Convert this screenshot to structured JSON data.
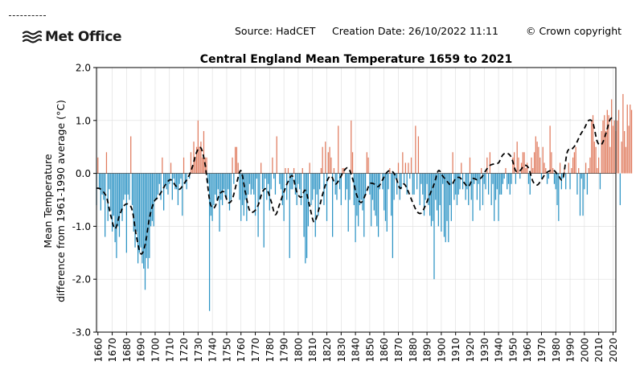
{
  "header": {
    "logo_text": "Met Office",
    "source": "Source: HadCET",
    "creation": "Creation Date: 26/10/2022 11:11",
    "copyright": "© Crown copyright"
  },
  "colors": {
    "positive": "#e07b5e",
    "negative": "#2b93c4",
    "smooth": "#000000",
    "grid": "#dddddd"
  },
  "chart_data": {
    "type": "bar",
    "title": "Central England Mean Temperature 1659 to 2021",
    "ylabel_line1": "Mean Temperature",
    "ylabel_line2": "difference from 1961-1990 average (°C)",
    "xlabel": "",
    "xlim": [
      1659,
      2022
    ],
    "ylim": [
      -3.0,
      2.0
    ],
    "yticks": [
      2.0,
      1.0,
      0.0,
      -1.0,
      -2.0,
      -3.0
    ],
    "ytick_labels": [
      "2.0",
      "1.0",
      "0.0",
      "-1.0",
      "-2.0",
      "-3.0"
    ],
    "xticks": [
      1660,
      1670,
      1680,
      1690,
      1700,
      1710,
      1720,
      1730,
      1740,
      1750,
      1760,
      1770,
      1780,
      1790,
      1800,
      1810,
      1820,
      1830,
      1840,
      1850,
      1860,
      1870,
      1880,
      1890,
      1900,
      1910,
      1920,
      1930,
      1940,
      1950,
      1960,
      1970,
      1980,
      1990,
      2000,
      2010,
      2020
    ],
    "xtick_labels": [
      "1660",
      "1670",
      "1680",
      "1690",
      "1700",
      "1710",
      "1720",
      "1730",
      "1740",
      "1750",
      "1760",
      "1770",
      "1780",
      "1790",
      "1800",
      "1810",
      "1820",
      "1830",
      "1840",
      "1850",
      "1860",
      "1870",
      "1880",
      "1890",
      "1900",
      "1910",
      "1920",
      "1930",
      "1940",
      "1950",
      "1960",
      "1970",
      "1980",
      "1990",
      "2000",
      "2010",
      "2020"
    ],
    "grid": true,
    "start_year": 1659,
    "series": [
      {
        "type": "bar",
        "values": [
          -0.6,
          0.3,
          -0.3,
          -0.7,
          -0.4,
          -0.5,
          -1.2,
          0.4,
          -0.9,
          -0.3,
          -0.7,
          -1.1,
          -0.8,
          -1.3,
          -1.6,
          -1.0,
          -1.2,
          -0.7,
          -0.9,
          -0.5,
          -0.4,
          -1.5,
          -0.4,
          -0.5,
          0.7,
          -0.6,
          -1.1,
          -1.4,
          -1.1,
          -1.7,
          -1.5,
          -1.4,
          -1.7,
          -1.8,
          -2.2,
          -1.6,
          -1.8,
          -1.6,
          -1.0,
          -0.9,
          -1.0,
          -0.5,
          -0.5,
          -0.4,
          -0.2,
          -0.5,
          0.3,
          -0.7,
          -0.2,
          -0.3,
          -0.4,
          -0.2,
          0.2,
          -0.5,
          -0.1,
          -0.3,
          -0.3,
          -0.6,
          -0.2,
          -0.1,
          -0.8,
          0.3,
          -0.2,
          -0.3,
          0.0,
          -0.1,
          0.4,
          0.1,
          0.6,
          0.3,
          0.5,
          1.0,
          0.5,
          0.6,
          0.3,
          0.8,
          0.3,
          0.3,
          -0.2,
          -2.6,
          -0.8,
          -0.9,
          -0.6,
          -0.4,
          -0.5,
          -0.3,
          -1.1,
          -0.5,
          -0.6,
          -0.3,
          -0.4,
          -0.5,
          -0.3,
          -0.7,
          -0.5,
          0.3,
          -0.2,
          0.5,
          0.5,
          0.2,
          -0.5,
          -0.9,
          -0.6,
          -0.8,
          -0.5,
          -0.9,
          -0.4,
          -0.2,
          -0.4,
          -0.3,
          -0.4,
          -0.8,
          -0.1,
          -1.2,
          -0.5,
          0.2,
          -0.3,
          -1.4,
          -0.1,
          -0.5,
          -0.2,
          -0.7,
          -0.3,
          0.3,
          -0.1,
          -0.4,
          0.7,
          0.0,
          -0.2,
          -0.3,
          -0.6,
          -0.9,
          0.1,
          -0.5,
          0.1,
          -1.6,
          -0.3,
          -0.3,
          0.1,
          -0.4,
          -0.6,
          -0.2,
          -0.3,
          -0.6,
          0.1,
          -1.2,
          -1.7,
          -1.6,
          -1.0,
          0.2,
          -0.6,
          -0.5,
          -0.3,
          -1.2,
          -0.4,
          -0.8,
          -0.3,
          0.1,
          0.5,
          -0.6,
          0.6,
          -0.9,
          0.4,
          0.5,
          0.3,
          -1.2,
          0.1,
          -0.4,
          -0.5,
          0.9,
          -0.3,
          -0.6,
          0.1,
          0.1,
          -0.5,
          -0.3,
          -1.1,
          -0.5,
          1.0,
          0.4,
          -0.6,
          -1.3,
          -0.8,
          -1.0,
          -0.6,
          -0.5,
          -0.7,
          -1.2,
          -0.4,
          0.4,
          0.3,
          -0.4,
          -1.0,
          -0.5,
          -0.7,
          -0.8,
          -1.0,
          -1.2,
          -0.3,
          0.0,
          -0.3,
          -0.7,
          -0.9,
          -1.1,
          -0.3,
          0.1,
          -0.8,
          -1.6,
          -0.5,
          -0.1,
          -0.4,
          0.2,
          -0.5,
          -0.3,
          0.4,
          -0.2,
          0.2,
          -0.4,
          0.2,
          -0.1,
          0.3,
          -0.4,
          -0.4,
          0.9,
          -0.3,
          0.7,
          -0.6,
          -0.2,
          -0.4,
          -0.8,
          -0.5,
          -0.2,
          -0.6,
          -0.8,
          -1.0,
          -0.9,
          -2.0,
          -0.5,
          -0.7,
          -1.0,
          -0.6,
          -1.1,
          -0.2,
          -1.2,
          -1.3,
          -0.9,
          -1.3,
          -0.6,
          -0.9,
          0.4,
          -0.5,
          -0.4,
          -0.6,
          -0.4,
          -0.3,
          0.2,
          -0.3,
          0.0,
          -0.5,
          -0.3,
          -0.6,
          0.3,
          -0.5,
          -0.9,
          -0.2,
          -0.1,
          -0.5,
          -0.2,
          -0.7,
          0.1,
          -0.6,
          -0.2,
          -0.3,
          0.3,
          -0.4,
          0.4,
          -0.6,
          -0.2,
          -0.9,
          -0.5,
          -0.3,
          -0.9,
          -0.4,
          -0.4,
          -0.2,
          -0.1,
          0.1,
          -0.3,
          -0.2,
          -0.4,
          -0.2,
          0.3,
          0.4,
          -0.2,
          0.6,
          0.3,
          -0.1,
          0.2,
          0.4,
          0.4,
          0.1,
          0.2,
          -0.2,
          -0.4,
          0.3,
          0.1,
          0.4,
          0.7,
          0.6,
          0.5,
          0.3,
          -0.1,
          0.5,
          0.2,
          0.1,
          -0.2,
          -0.1,
          0.9,
          0.4,
          0.1,
          -0.2,
          -0.3,
          -0.6,
          -0.9,
          0.2,
          -0.3,
          -0.1,
          0.1,
          -0.3,
          0.0,
          0.2,
          -0.3,
          0.1,
          0.3,
          0.4,
          0.5,
          -0.4,
          0.1,
          -0.8,
          -0.1,
          -0.8,
          -0.3,
          0.2,
          -0.4,
          0.1,
          0.3,
          1.0,
          1.1,
          0.6,
          0.5,
          0.1,
          0.3,
          -0.3,
          0.8,
          1.0,
          1.1,
          0.8,
          1.2,
          1.1,
          0.5,
          1.4,
          0.9,
          1.0,
          0.8,
          1.0,
          1.2,
          -0.6,
          0.6,
          1.5,
          0.8,
          0.5,
          1.3,
          0.9,
          1.3,
          1.2
        ]
      },
      {
        "type": "line",
        "x": [
          1659,
          1662,
          1666,
          1669,
          1672,
          1675,
          1678,
          1681,
          1684,
          1687,
          1690,
          1693,
          1696,
          1699,
          1702,
          1705,
          1708,
          1711,
          1714,
          1717,
          1720,
          1723,
          1726,
          1729,
          1732,
          1735,
          1738,
          1740,
          1742,
          1745,
          1748,
          1751,
          1754,
          1757,
          1760,
          1763,
          1766,
          1769,
          1772,
          1775,
          1778,
          1781,
          1784,
          1787,
          1790,
          1793,
          1796,
          1799,
          1802,
          1805,
          1808,
          1811,
          1814,
          1817,
          1820,
          1823,
          1826,
          1829,
          1832,
          1835,
          1838,
          1841,
          1844,
          1847,
          1850,
          1853,
          1856,
          1859,
          1862,
          1865,
          1868,
          1871,
          1874,
          1877,
          1880,
          1883,
          1886,
          1889,
          1892,
          1895,
          1898,
          1901,
          1904,
          1907,
          1910,
          1913,
          1916,
          1919,
          1922,
          1925,
          1928,
          1931,
          1934,
          1937,
          1940,
          1943,
          1946,
          1949,
          1952,
          1955,
          1958,
          1961,
          1964,
          1967,
          1970,
          1973,
          1976,
          1979,
          1982,
          1985,
          1988,
          1991,
          1994,
          1997,
          2000,
          2003,
          2006,
          2009,
          2012,
          2015,
          2018,
          2021
        ],
        "y": [
          -0.28,
          -0.3,
          -0.45,
          -0.8,
          -1.05,
          -0.8,
          -0.62,
          -0.58,
          -0.7,
          -1.2,
          -1.52,
          -1.35,
          -0.85,
          -0.55,
          -0.45,
          -0.32,
          -0.18,
          -0.12,
          -0.22,
          -0.3,
          -0.2,
          -0.08,
          0.12,
          0.4,
          0.48,
          0.15,
          -0.5,
          -0.65,
          -0.62,
          -0.4,
          -0.35,
          -0.55,
          -0.48,
          -0.18,
          0.05,
          -0.35,
          -0.7,
          -0.72,
          -0.6,
          -0.35,
          -0.3,
          -0.52,
          -0.78,
          -0.58,
          -0.35,
          -0.15,
          -0.05,
          -0.35,
          -0.45,
          -0.32,
          -0.62,
          -0.92,
          -0.72,
          -0.4,
          -0.15,
          -0.05,
          -0.2,
          -0.1,
          0.05,
          0.1,
          -0.1,
          -0.42,
          -0.55,
          -0.4,
          -0.2,
          -0.2,
          -0.25,
          -0.12,
          0.02,
          0.05,
          -0.05,
          -0.28,
          -0.2,
          -0.35,
          -0.55,
          -0.72,
          -0.75,
          -0.6,
          -0.4,
          -0.2,
          0.05,
          -0.05,
          -0.15,
          -0.22,
          -0.1,
          -0.08,
          -0.18,
          -0.25,
          -0.1,
          -0.12,
          -0.08,
          0.05,
          0.15,
          0.18,
          0.2,
          0.35,
          0.38,
          0.3,
          0.05,
          0.05,
          0.15,
          0.1,
          -0.15,
          -0.22,
          -0.12,
          0.0,
          0.05,
          0.05,
          -0.05,
          -0.1,
          0.4,
          0.45,
          0.55,
          0.72,
          0.85,
          1.0,
          0.95,
          0.6,
          0.55,
          0.75,
          1.02,
          1.05
        ]
      }
    ]
  }
}
